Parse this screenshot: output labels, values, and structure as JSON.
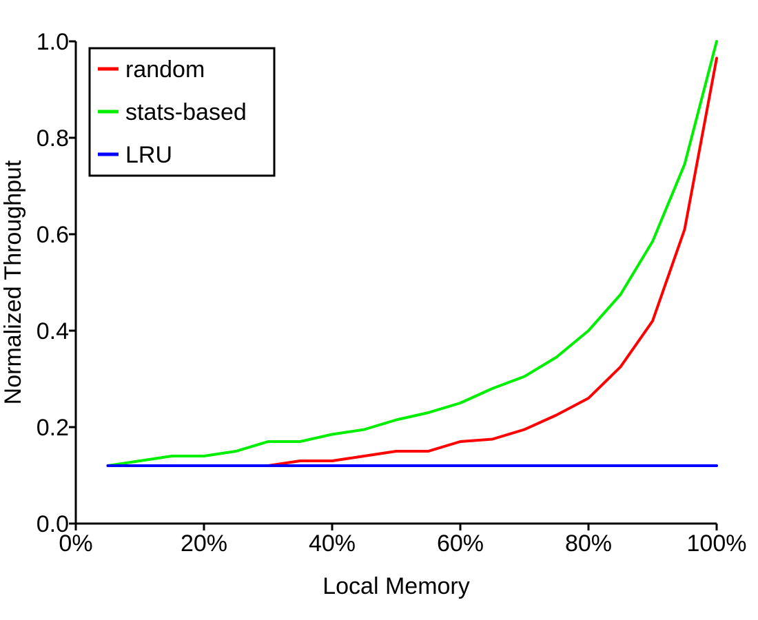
{
  "chart_data": {
    "type": "line",
    "title": "",
    "xlabel": "Local Memory",
    "ylabel": "Normalized Throughput",
    "xlim": [
      0,
      100
    ],
    "ylim": [
      0,
      1.0
    ],
    "x_ticks": [
      0,
      20,
      40,
      60,
      80,
      100
    ],
    "x_tick_labels": [
      "0%",
      "20%",
      "40%",
      "60%",
      "80%",
      "100%"
    ],
    "y_ticks": [
      0.0,
      0.2,
      0.4,
      0.6,
      0.8,
      1.0
    ],
    "y_tick_labels": [
      "0.0",
      "0.2",
      "0.4",
      "0.6",
      "0.8",
      "1.0"
    ],
    "grid": false,
    "legend_position": "top-left",
    "x": [
      5,
      10,
      15,
      20,
      25,
      30,
      35,
      40,
      45,
      50,
      55,
      60,
      65,
      70,
      75,
      80,
      85,
      90,
      95,
      100
    ],
    "series": [
      {
        "name": "random",
        "color": "#ff0000",
        "values": [
          0.12,
          0.12,
          0.12,
          0.12,
          0.12,
          0.12,
          0.13,
          0.13,
          0.14,
          0.15,
          0.15,
          0.17,
          0.175,
          0.195,
          0.225,
          0.26,
          0.325,
          0.42,
          0.61,
          0.965
        ]
      },
      {
        "name": "stats-based",
        "color": "#00ee00",
        "values": [
          0.12,
          0.13,
          0.14,
          0.14,
          0.15,
          0.17,
          0.17,
          0.185,
          0.195,
          0.215,
          0.23,
          0.25,
          0.28,
          0.305,
          0.345,
          0.4,
          0.475,
          0.585,
          0.745,
          1.0
        ]
      },
      {
        "name": "LRU",
        "color": "#0000ff",
        "values": [
          0.12,
          0.12,
          0.12,
          0.12,
          0.12,
          0.12,
          0.12,
          0.12,
          0.12,
          0.12,
          0.12,
          0.12,
          0.12,
          0.12,
          0.12,
          0.12,
          0.12,
          0.12,
          0.12,
          0.12
        ]
      }
    ]
  }
}
